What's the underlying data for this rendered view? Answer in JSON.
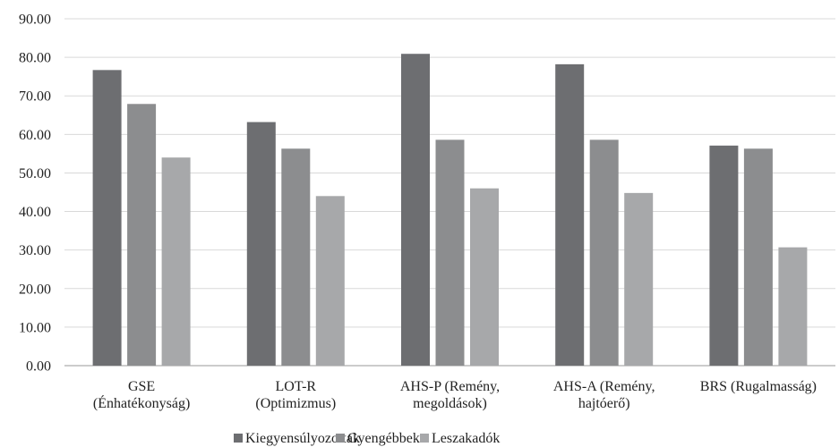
{
  "chart_data": {
    "type": "bar",
    "categories": [
      [
        "GSE",
        "(Énhatékonyság)"
      ],
      [
        "LOT-R",
        "(Optimizmus)"
      ],
      [
        "AHS-P (Remény,",
        "megoldások)"
      ],
      [
        "AHS-A (Remény,",
        "hajtóerő)"
      ],
      [
        "BRS (Rugalmasság)"
      ]
    ],
    "series": [
      {
        "name": "Kiegyensúlyozottak",
        "color": "#6d6e71",
        "values": [
          76.7,
          63.2,
          80.9,
          78.2,
          57.1
        ]
      },
      {
        "name": "Gyengébbek",
        "color": "#8c8d8f",
        "values": [
          67.9,
          56.3,
          58.6,
          58.6,
          56.3
        ]
      },
      {
        "name": "Leszakadók",
        "color": "#a7a8aa",
        "values": [
          54.0,
          44.0,
          46.0,
          44.8,
          30.7
        ]
      }
    ],
    "ylim": [
      0,
      90
    ],
    "yticks": [
      "0.00",
      "10.00",
      "20.00",
      "30.00",
      "40.00",
      "50.00",
      "60.00",
      "70.00",
      "80.00",
      "90.00"
    ],
    "grid": true,
    "legend_position": "bottom"
  }
}
